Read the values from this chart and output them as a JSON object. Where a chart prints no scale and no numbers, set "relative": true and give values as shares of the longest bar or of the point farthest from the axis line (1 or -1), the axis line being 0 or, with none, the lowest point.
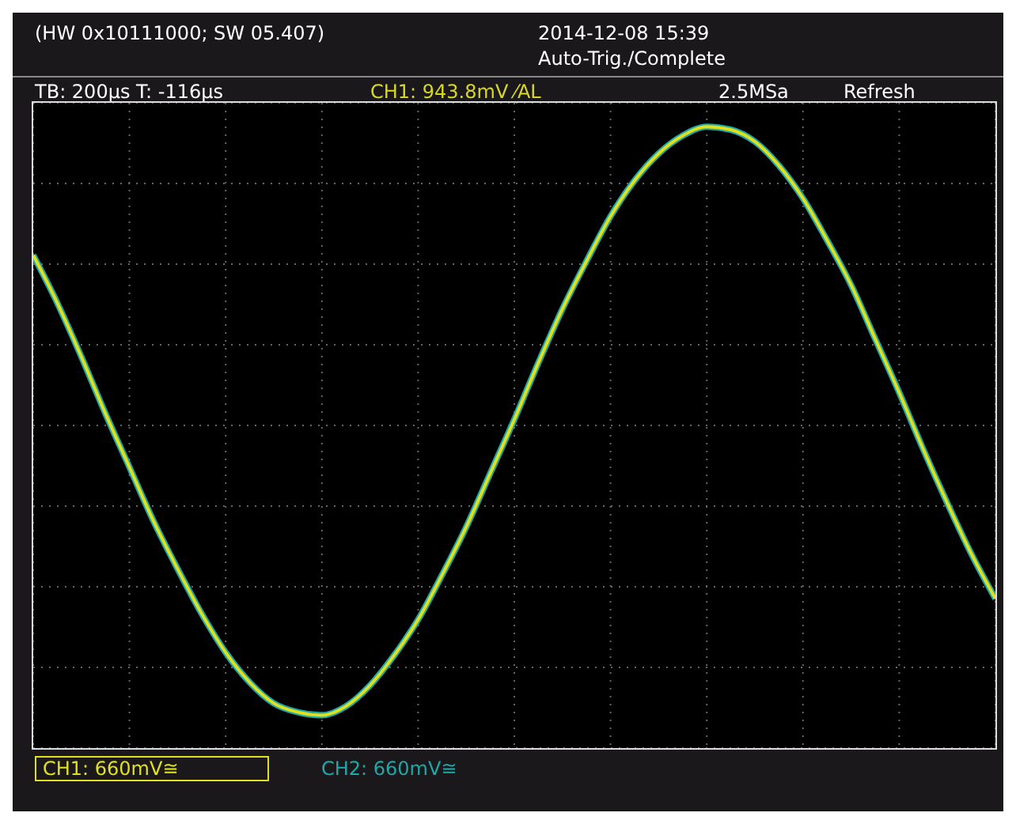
{
  "chart_data": {
    "type": "line",
    "relative": true,
    "grid": true,
    "legend": "bottom left",
    "marker": "none",
    "line_style": "solid",
    "categories": [
      null,
      null,
      null,
      null,
      null,
      null,
      null,
      null,
      null,
      null,
      null,
      null,
      null,
      null,
      null,
      null,
      null,
      null,
      null,
      null,
      null,
      null,
      null,
      null,
      null,
      null,
      null,
      null,
      null,
      null,
      null,
      null,
      null,
      null,
      null,
      null,
      null,
      null,
      null,
      null,
      null
    ],
    "series": [
      {
        "name": "CH1: 660mV≅",
        "color": "#e0e020",
        "values": [
          0.57,
          0.41,
          0.23,
          0.04,
          -0.14,
          -0.32,
          -0.48,
          -0.63,
          -0.76,
          -0.86,
          -0.93,
          -0.96,
          -0.97,
          -0.94,
          -0.87,
          -0.77,
          -0.65,
          -0.5,
          -0.34,
          -0.16,
          0.02,
          0.21,
          0.39,
          0.55,
          0.7,
          0.82,
          0.91,
          0.97,
          1.0,
          0.99,
          0.95,
          0.87,
          0.76,
          0.62,
          0.47,
          0.29,
          0.11,
          -0.08,
          -0.26,
          -0.43,
          -0.58
        ]
      },
      {
        "name": "CH2: 660mV≅",
        "color": "#1fa8a8",
        "values": [
          0.57,
          0.41,
          0.23,
          0.04,
          -0.14,
          -0.32,
          -0.48,
          -0.63,
          -0.76,
          -0.86,
          -0.93,
          -0.96,
          -0.97,
          -0.94,
          -0.87,
          -0.77,
          -0.65,
          -0.5,
          -0.34,
          -0.16,
          0.02,
          0.21,
          0.39,
          0.55,
          0.7,
          0.82,
          0.91,
          0.97,
          1.0,
          0.99,
          0.95,
          0.87,
          0.76,
          0.62,
          0.47,
          0.29,
          0.11,
          -0.08,
          -0.26,
          -0.43,
          -0.58
        ]
      }
    ],
    "annotations": [
      "(HW 0x10111000; SW 05.407)",
      "2014-12-08 15:39",
      "Auto-Trig./Complete",
      "TB: 200µs  T: -116µs",
      "CH1: 943.8mV ⁄AL",
      "2.5MSa",
      "Refresh"
    ]
  }
}
